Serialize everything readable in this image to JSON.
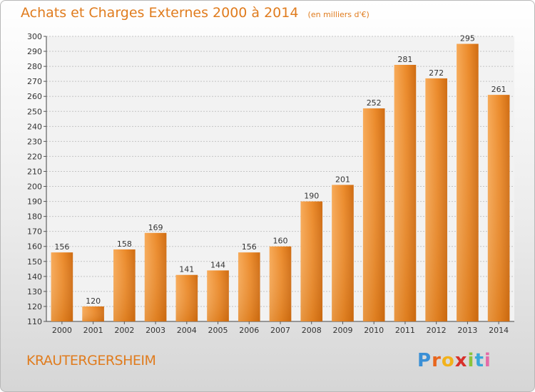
{
  "header": {
    "title": "Achats et Charges Externes 2000 à 2014",
    "unit": "(en milliers d'€)"
  },
  "footer": {
    "place": "KRAUTERGERSHEIM",
    "brand": "Proxiti"
  },
  "colors": {
    "accent": "#e07c1e",
    "bar_light": "#f5a24c",
    "bar_dark": "#c8660c"
  },
  "chart_data": {
    "type": "bar",
    "title": "Achats et Charges Externes 2000 à 2014",
    "subtitle": "(en milliers d'€)",
    "categories": [
      "2000",
      "2001",
      "2002",
      "2003",
      "2004",
      "2005",
      "2006",
      "2007",
      "2008",
      "2009",
      "2010",
      "2011",
      "2012",
      "2013",
      "2014"
    ],
    "values": [
      156,
      120,
      158,
      169,
      141,
      144,
      156,
      160,
      190,
      201,
      252,
      281,
      272,
      295,
      261
    ],
    "ylim": [
      110,
      300
    ],
    "yticks": [
      110,
      120,
      130,
      140,
      150,
      160,
      170,
      180,
      190,
      200,
      210,
      220,
      230,
      240,
      250,
      260,
      270,
      280,
      290,
      300
    ],
    "grid": true,
    "data_labels": true
  }
}
